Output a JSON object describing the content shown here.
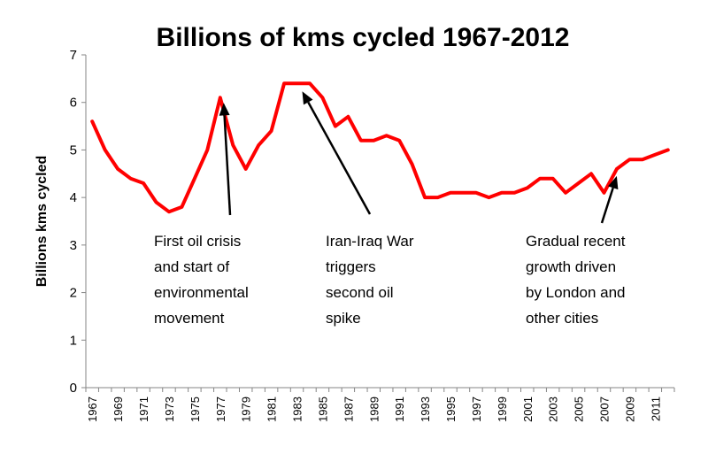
{
  "chart_data": {
    "type": "line",
    "title": "Billions of kms cycled 1967-2012",
    "ylabel": "Billions kms cycled",
    "xlabel": "",
    "ylim": [
      0,
      7
    ],
    "yticks": [
      "0",
      "1",
      "2",
      "3",
      "4",
      "5",
      "6",
      "7"
    ],
    "xticks": [
      "1967",
      "1969",
      "1971",
      "1973",
      "1975",
      "1977",
      "1979",
      "1981",
      "1983",
      "1985",
      "1987",
      "1989",
      "1991",
      "1993",
      "1995",
      "1997",
      "1999",
      "2001",
      "2003",
      "2005",
      "2007",
      "2009",
      "2011"
    ],
    "line_color": "#ff0000",
    "x": [
      1967,
      1968,
      1969,
      1970,
      1971,
      1972,
      1973,
      1974,
      1975,
      1976,
      1977,
      1978,
      1979,
      1980,
      1981,
      1982,
      1983,
      1984,
      1985,
      1986,
      1987,
      1988,
      1989,
      1990,
      1991,
      1992,
      1993,
      1994,
      1995,
      1996,
      1997,
      1998,
      1999,
      2000,
      2001,
      2002,
      2003,
      2004,
      2005,
      2006,
      2007,
      2008,
      2009,
      2010,
      2011,
      2012
    ],
    "values": [
      5.6,
      5.0,
      4.6,
      4.4,
      4.3,
      3.9,
      3.7,
      3.8,
      4.4,
      5.0,
      6.1,
      5.1,
      4.6,
      5.1,
      5.4,
      6.4,
      6.4,
      6.4,
      6.1,
      5.5,
      5.7,
      5.2,
      5.2,
      5.3,
      5.2,
      4.7,
      4.0,
      4.0,
      4.1,
      4.1,
      4.1,
      4.0,
      4.1,
      4.1,
      4.2,
      4.4,
      4.4,
      4.1,
      4.3,
      4.5,
      4.1,
      4.6,
      4.8,
      4.8,
      4.9,
      5.0
    ],
    "annotations": [
      {
        "lines": [
          "First oil crisis",
          "and start of",
          "environmental",
          "movement"
        ],
        "points_to_year": 1977
      },
      {
        "lines": [
          "Iran-Iraq War",
          "triggers",
          "second oil",
          "spike"
        ],
        "points_to_year": 1983
      },
      {
        "lines": [
          "Gradual recent",
          "growth driven",
          "by London and",
          "other cities"
        ],
        "points_to_year": 2008
      }
    ]
  }
}
